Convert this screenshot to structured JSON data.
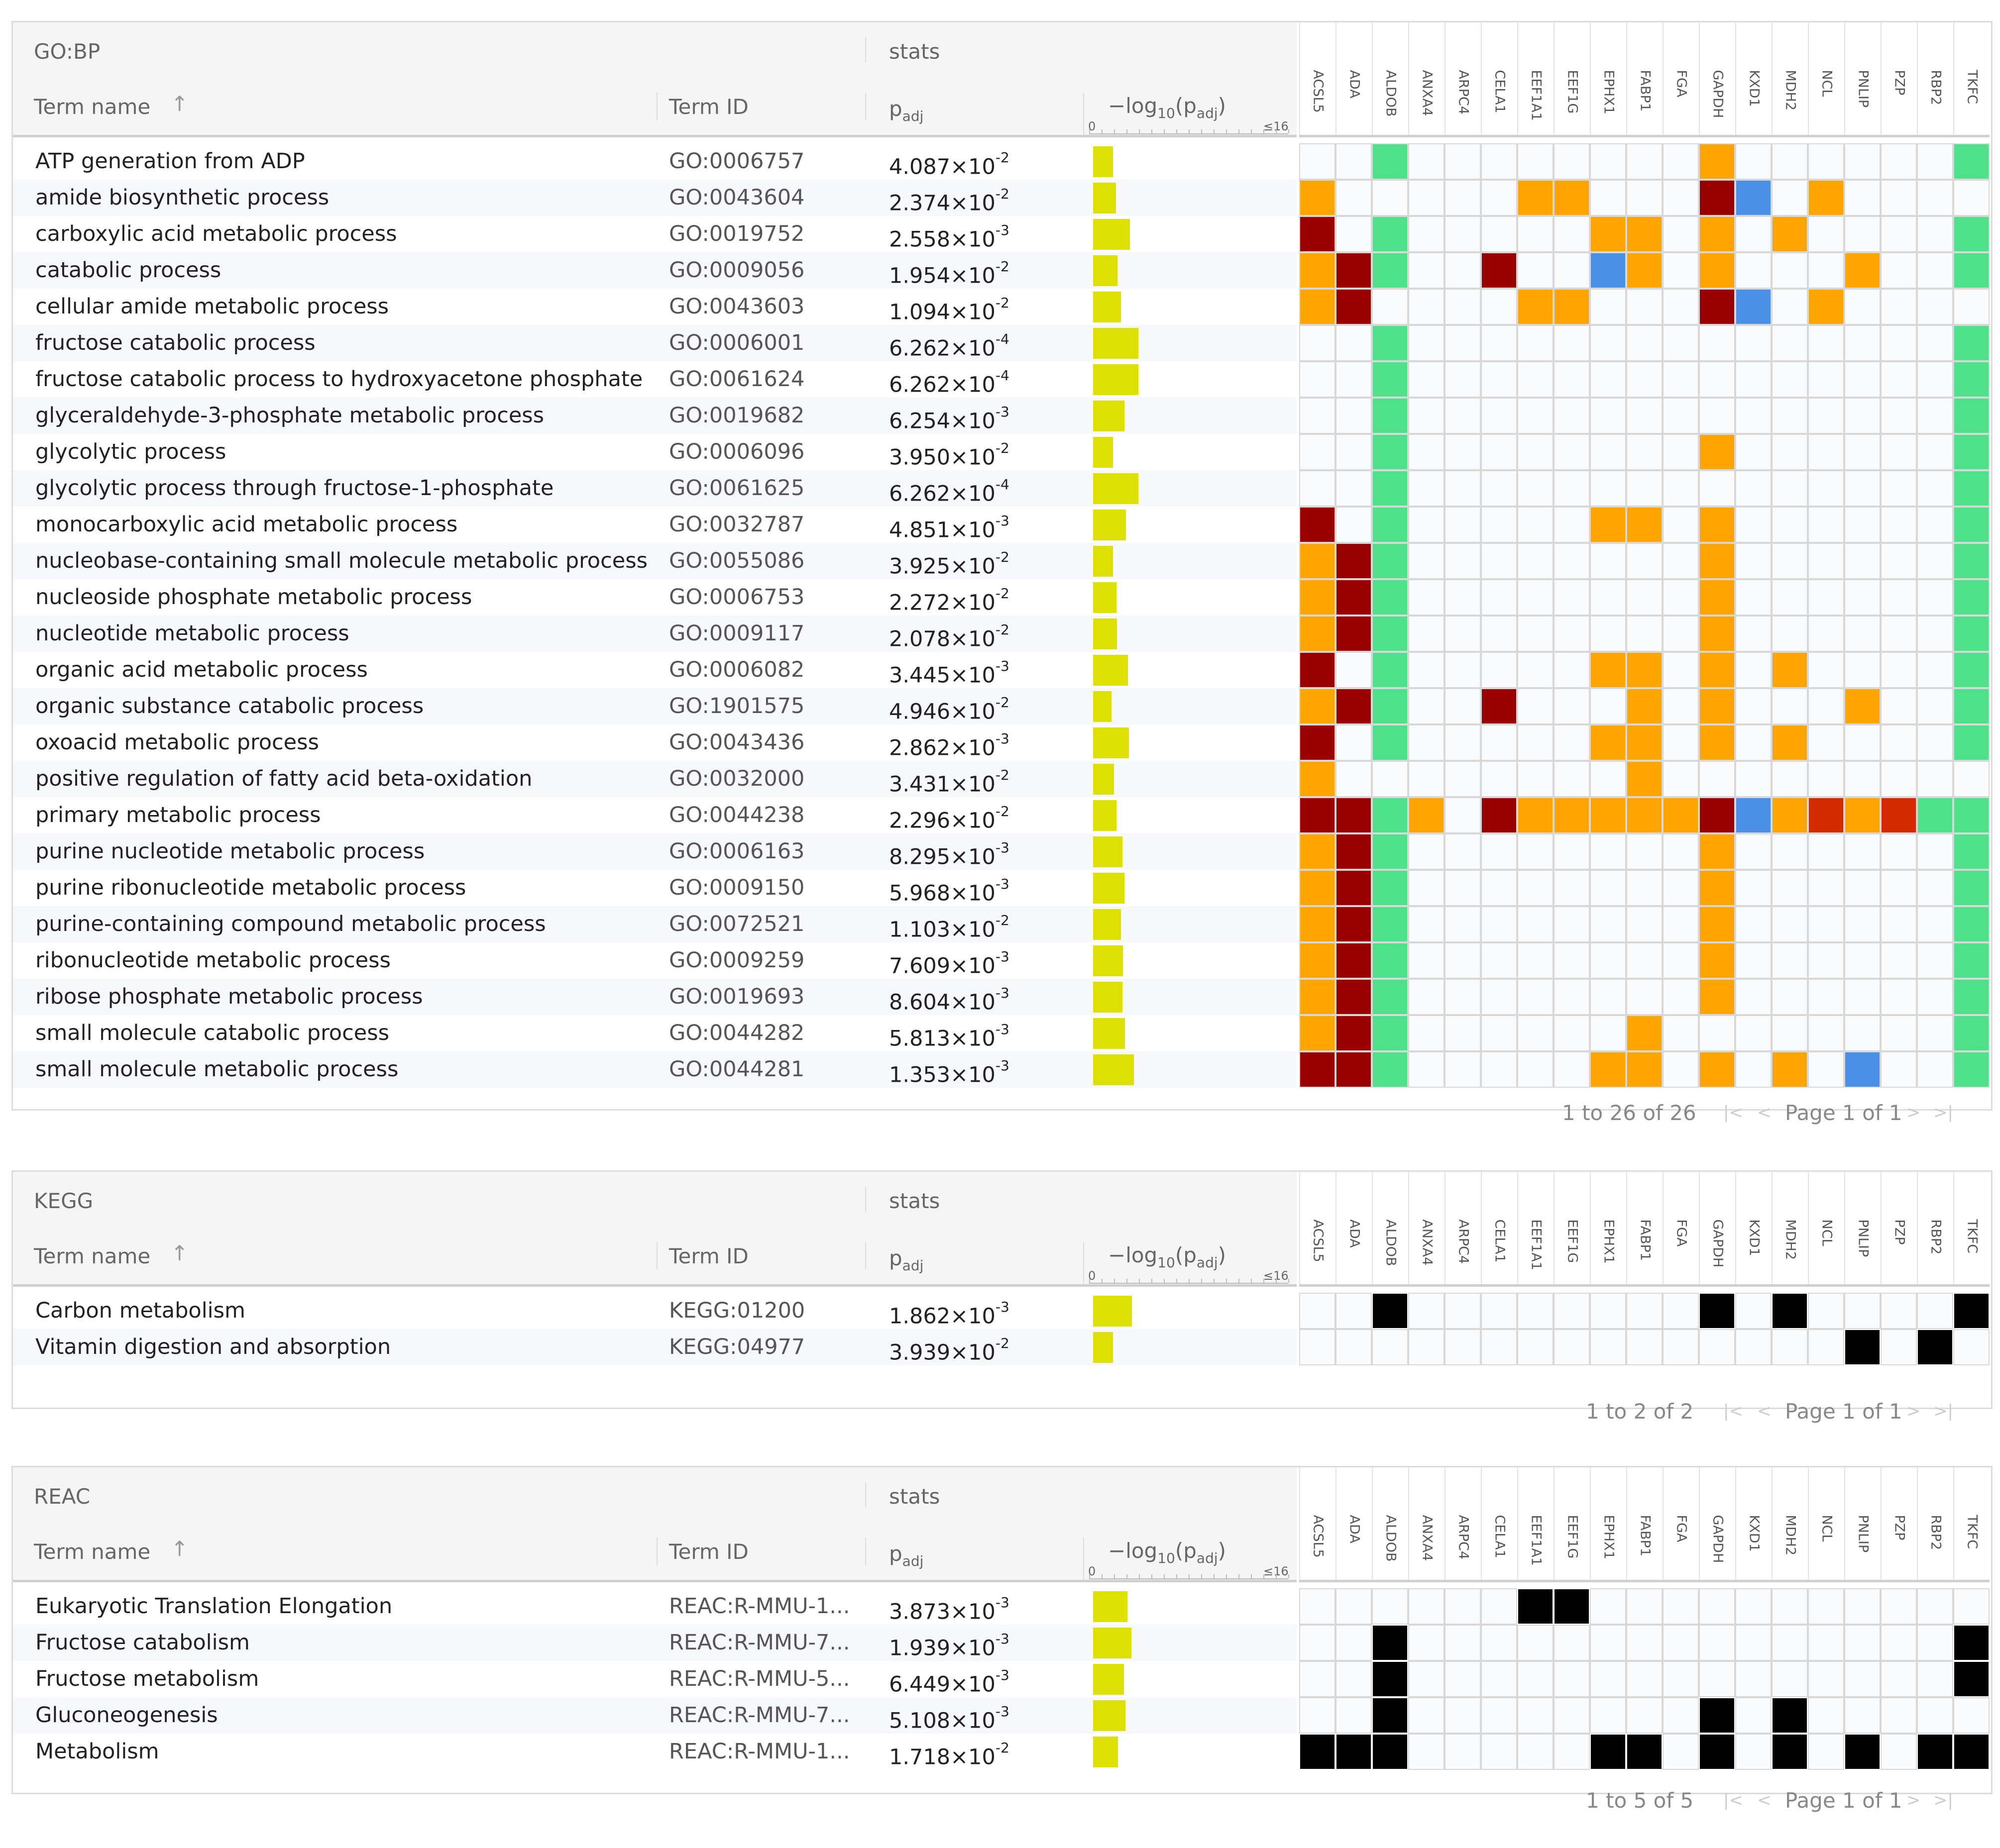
{
  "colors": {
    "bar": "#dde000",
    "dark_red": "#9b0000",
    "orange": "#ffa500",
    "green": "#4fe18a",
    "blue": "#4a90e8",
    "red": "#d42a00",
    "black": "#000000",
    "empty": "#fafbfd"
  },
  "genes": [
    "ACSL5",
    "ADA",
    "ALDOB",
    "ANXA4",
    "ARPC4",
    "CELA1",
    "EEF1A1",
    "EEF1G",
    "EPHX1",
    "FABP1",
    "FGA",
    "GAPDH",
    "KXD1",
    "MDH2",
    "NCL",
    "PNLIP",
    "PZP",
    "RBP2",
    "TKFC"
  ],
  "common": {
    "stats_label": "stats",
    "col_term_name": "Term name",
    "sort_icon": "↑",
    "col_term_id": "Term ID",
    "col_padj": "p",
    "col_padj_sub": "adj",
    "col_log": "−log",
    "col_log_sub": "10",
    "col_log_arg": "(p",
    "col_log_arg_sub": "adj",
    "col_log_close": ")",
    "axis_min": "0",
    "axis_max": "≤16",
    "page_label": "Page 1 of 1",
    "first_icon": "|<",
    "prev_icon": "<",
    "next_icon": ">",
    "last_icon": ">|"
  },
  "panels": [
    {
      "source": "GO:BP",
      "footer": "1 to 26 of 26",
      "rows": [
        {
          "name": "ATP generation from ADP",
          "id": "GO:0006757",
          "p_mant": "4.087",
          "p_exp": "-2",
          "log": 1.389,
          "cells": "..G........O......G"
        },
        {
          "name": "amide biosynthetic process",
          "id": "GO:0043604",
          "p_mant": "2.374",
          "p_exp": "-2",
          "log": 1.625,
          "cells": "O.....OO...DB.O...."
        },
        {
          "name": "carboxylic acid metabolic process",
          "id": "GO:0019752",
          "p_mant": "2.558",
          "p_exp": "-3",
          "log": 2.592,
          "cells": "D.G.....OO.O.O....G"
        },
        {
          "name": "catabolic process",
          "id": "GO:0009056",
          "p_mant": "1.954",
          "p_exp": "-2",
          "log": 1.709,
          "cells": "ODG..D..BO.O...O..G"
        },
        {
          "name": "cellular amide metabolic process",
          "id": "GO:0043603",
          "p_mant": "1.094",
          "p_exp": "-2",
          "log": 1.961,
          "cells": "OD....OO...DB.O...."
        },
        {
          "name": "fructose catabolic process",
          "id": "GO:0006001",
          "p_mant": "6.262",
          "p_exp": "-4",
          "log": 3.203,
          "cells": "..G...............G"
        },
        {
          "name": "fructose catabolic process to hydroxyacetone phosphate an...",
          "id": "GO:0061624",
          "p_mant": "6.262",
          "p_exp": "-4",
          "log": 3.203,
          "cells": "..G...............G"
        },
        {
          "name": "glyceraldehyde-3-phosphate metabolic process",
          "id": "GO:0019682",
          "p_mant": "6.254",
          "p_exp": "-3",
          "log": 2.204,
          "cells": "..G...............G"
        },
        {
          "name": "glycolytic process",
          "id": "GO:0006096",
          "p_mant": "3.950",
          "p_exp": "-2",
          "log": 1.403,
          "cells": "..G........O......G"
        },
        {
          "name": "glycolytic process through fructose-1-phosphate",
          "id": "GO:0061625",
          "p_mant": "6.262",
          "p_exp": "-4",
          "log": 3.203,
          "cells": "..G...............G"
        },
        {
          "name": "monocarboxylic acid metabolic process",
          "id": "GO:0032787",
          "p_mant": "4.851",
          "p_exp": "-3",
          "log": 2.314,
          "cells": "D.G.....OO.O......G"
        },
        {
          "name": "nucleobase-containing small molecule metabolic process",
          "id": "GO:0055086",
          "p_mant": "3.925",
          "p_exp": "-2",
          "log": 1.406,
          "cells": "ODG........O......G"
        },
        {
          "name": "nucleoside phosphate metabolic process",
          "id": "GO:0006753",
          "p_mant": "2.272",
          "p_exp": "-2",
          "log": 1.644,
          "cells": "ODG........O......G"
        },
        {
          "name": "nucleotide metabolic process",
          "id": "GO:0009117",
          "p_mant": "2.078",
          "p_exp": "-2",
          "log": 1.682,
          "cells": "ODG........O......G"
        },
        {
          "name": "organic acid metabolic process",
          "id": "GO:0006082",
          "p_mant": "3.445",
          "p_exp": "-3",
          "log": 2.463,
          "cells": "D.G.....OO.O.O....G"
        },
        {
          "name": "organic substance catabolic process",
          "id": "GO:1901575",
          "p_mant": "4.946",
          "p_exp": "-2",
          "log": 1.306,
          "cells": "ODG..D...O.O...O..G"
        },
        {
          "name": "oxoacid metabolic process",
          "id": "GO:0043436",
          "p_mant": "2.862",
          "p_exp": "-3",
          "log": 2.543,
          "cells": "D.G.....OO.O.O....G"
        },
        {
          "name": "positive regulation of fatty acid beta-oxidation",
          "id": "GO:0032000",
          "p_mant": "3.431",
          "p_exp": "-2",
          "log": 1.465,
          "cells": "O........O........."
        },
        {
          "name": "primary metabolic process",
          "id": "GO:0044238",
          "p_mant": "2.296",
          "p_exp": "-2",
          "log": 1.639,
          "cells": "DDGO.DOOOOODBORORGG"
        },
        {
          "name": "purine nucleotide metabolic process",
          "id": "GO:0006163",
          "p_mant": "8.295",
          "p_exp": "-3",
          "log": 2.081,
          "cells": "ODG........O......G"
        },
        {
          "name": "purine ribonucleotide metabolic process",
          "id": "GO:0009150",
          "p_mant": "5.968",
          "p_exp": "-3",
          "log": 2.224,
          "cells": "ODG........O......G"
        },
        {
          "name": "purine-containing compound metabolic process",
          "id": "GO:0072521",
          "p_mant": "1.103",
          "p_exp": "-2",
          "log": 1.957,
          "cells": "ODG........O......G"
        },
        {
          "name": "ribonucleotide metabolic process",
          "id": "GO:0009259",
          "p_mant": "7.609",
          "p_exp": "-3",
          "log": 2.119,
          "cells": "ODG........O......G"
        },
        {
          "name": "ribose phosphate metabolic process",
          "id": "GO:0019693",
          "p_mant": "8.604",
          "p_exp": "-3",
          "log": 2.065,
          "cells": "ODG........O......G"
        },
        {
          "name": "small molecule catabolic process",
          "id": "GO:0044282",
          "p_mant": "5.813",
          "p_exp": "-3",
          "log": 2.236,
          "cells": "ODG......O........G"
        },
        {
          "name": "small molecule metabolic process",
          "id": "GO:0044281",
          "p_mant": "1.353",
          "p_exp": "-3",
          "log": 2.869,
          "cells": "DDG.....OO.O.O.B..G"
        }
      ]
    },
    {
      "source": "KEGG",
      "footer": "1 to 2 of 2",
      "rows": [
        {
          "name": "Carbon metabolism",
          "id": "KEGG:01200",
          "p_mant": "1.862",
          "p_exp": "-3",
          "log": 2.73,
          "cells": "..K........K.K....K"
        },
        {
          "name": "Vitamin digestion and absorption",
          "id": "KEGG:04977",
          "p_mant": "3.939",
          "p_exp": "-2",
          "log": 1.405,
          "cells": "...............K.K."
        }
      ]
    },
    {
      "source": "REAC",
      "footer": "1 to 5 of 5",
      "rows": [
        {
          "name": "Eukaryotic Translation Elongation",
          "id": "REAC:R-MMU-1...",
          "p_mant": "3.873",
          "p_exp": "-3",
          "log": 2.412,
          "cells": "......KK..........."
        },
        {
          "name": "Fructose catabolism",
          "id": "REAC:R-MMU-7...",
          "p_mant": "1.939",
          "p_exp": "-3",
          "log": 2.712,
          "cells": "..K...............K"
        },
        {
          "name": "Fructose metabolism",
          "id": "REAC:R-MMU-5...",
          "p_mant": "6.449",
          "p_exp": "-3",
          "log": 2.191,
          "cells": "..K...............K"
        },
        {
          "name": "Gluconeogenesis",
          "id": "REAC:R-MMU-7...",
          "p_mant": "5.108",
          "p_exp": "-3",
          "log": 2.292,
          "cells": "..K........K.K....."
        },
        {
          "name": "Metabolism",
          "id": "REAC:R-MMU-1...",
          "p_mant": "1.718",
          "p_exp": "-2",
          "log": 1.765,
          "cells": "KKK.....KK.K.K.K.KK"
        }
      ]
    }
  ]
}
